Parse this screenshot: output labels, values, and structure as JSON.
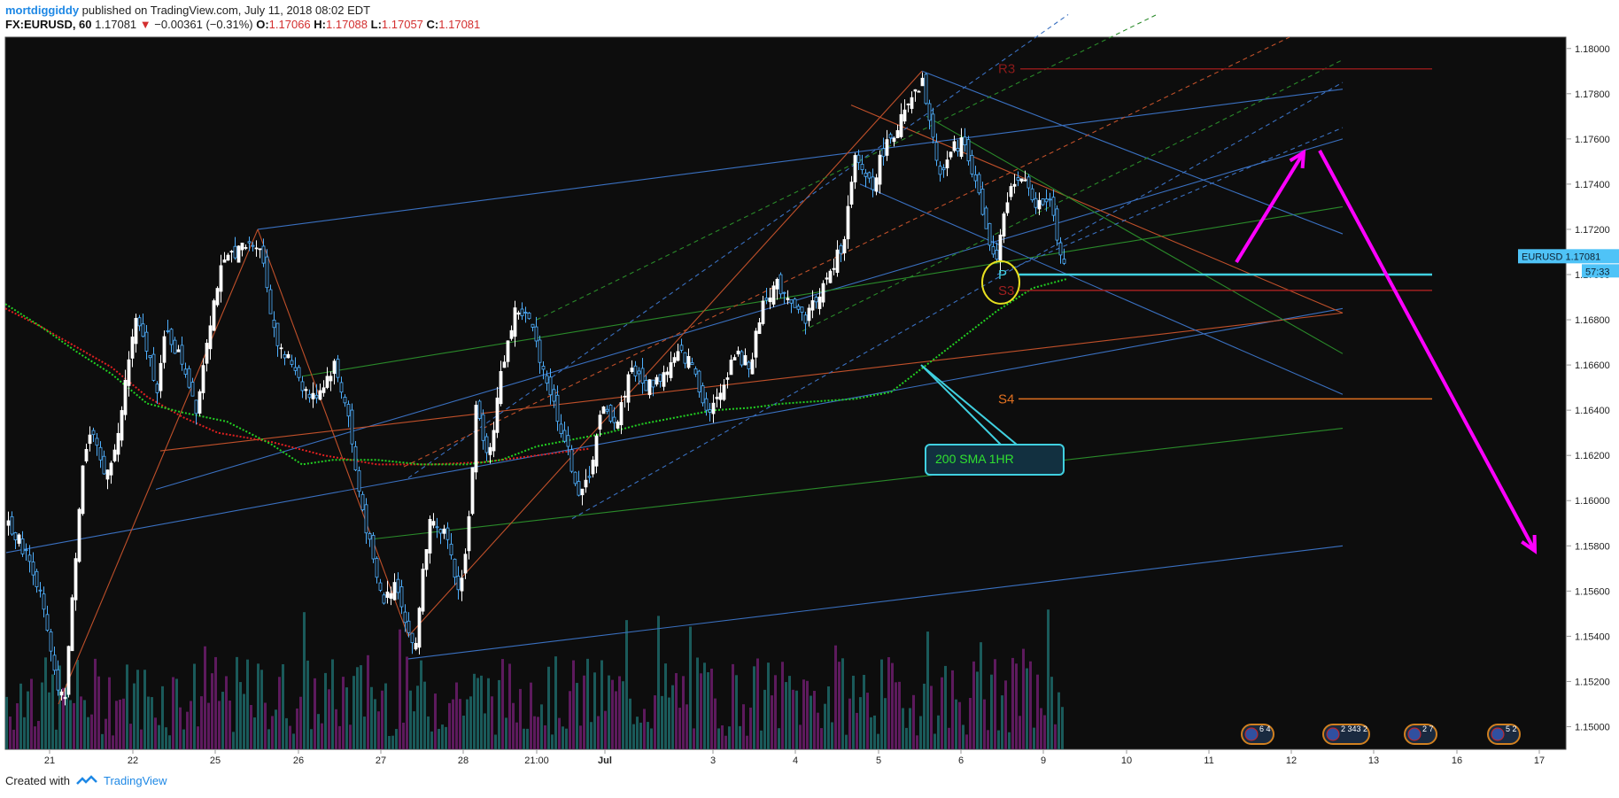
{
  "header": {
    "author": "mortdiggiddy",
    "published": "published on TradingView.com, July 11, 2018 08:02 EDT",
    "symbol": "FX:EURUSD, 60",
    "last": "1.17081",
    "arrow": "▼",
    "change": "−0.00361 (−0.31%)",
    "o_label": "O:",
    "o": "1.17066",
    "h_label": "H:",
    "h": "1.17088",
    "l_label": "L:",
    "l": "1.17057",
    "c_label": "C:",
    "c": "1.17081"
  },
  "footer": {
    "created_with": "Created with",
    "brand": "TradingView"
  },
  "chart_data": {
    "type": "candlestick",
    "symbol": "EURUSD",
    "timeframe": "60",
    "ylim": [
      1.149,
      1.1805
    ],
    "y_ticks": [
      "1.18000",
      "1.17800",
      "1.17600",
      "1.17400",
      "1.17200",
      "1.17000",
      "1.16800",
      "1.16600",
      "1.16400",
      "1.16200",
      "1.16000",
      "1.15800",
      "1.15600",
      "1.15400",
      "1.15200",
      "1.15000"
    ],
    "x_ticks": [
      "21",
      "22",
      "25",
      "26",
      "27",
      "28",
      "21:00",
      "Jul",
      "3",
      "4",
      "5",
      "6",
      "9",
      "10",
      "11",
      "12",
      "13",
      "16",
      "17"
    ],
    "price_label": "EURUSD",
    "price_value": "1.17081",
    "countdown": "57:33",
    "pivots": [
      {
        "name": "R3",
        "value": 1.1791,
        "color": "#8b1a1a"
      },
      {
        "name": "P",
        "value": 1.17,
        "color": "#40d0e0"
      },
      {
        "name": "S3",
        "value": 1.1693,
        "color": "#a02020"
      },
      {
        "name": "S4",
        "value": 1.1645,
        "color": "#e07020"
      }
    ],
    "annotation": "200 SMA 1HR",
    "event_badges": [
      "6 4",
      "2 343 2",
      "2 7",
      "5 2"
    ],
    "price_path": [
      [
        0,
        1.1592
      ],
      [
        10,
        1.1585
      ],
      [
        20,
        1.1578
      ],
      [
        30,
        1.157
      ],
      [
        40,
        1.1555
      ],
      [
        55,
        1.152
      ],
      [
        65,
        1.151
      ],
      [
        75,
        1.156
      ],
      [
        85,
        1.1615
      ],
      [
        95,
        1.163
      ],
      [
        110,
        1.1612
      ],
      [
        125,
        1.1625
      ],
      [
        135,
        1.1655
      ],
      [
        145,
        1.168
      ],
      [
        160,
        1.1665
      ],
      [
        170,
        1.165
      ],
      [
        180,
        1.1675
      ],
      [
        200,
        1.166
      ],
      [
        215,
        1.164
      ],
      [
        225,
        1.167
      ],
      [
        240,
        1.17
      ],
      [
        255,
        1.171
      ],
      [
        270,
        1.1712
      ],
      [
        285,
        1.1715
      ],
      [
        292,
        1.17
      ],
      [
        300,
        1.168
      ],
      [
        310,
        1.1665
      ],
      [
        325,
        1.166
      ],
      [
        335,
        1.165
      ],
      [
        345,
        1.1645
      ],
      [
        355,
        1.165
      ],
      [
        370,
        1.166
      ],
      [
        385,
        1.164
      ],
      [
        395,
        1.161
      ],
      [
        405,
        1.159
      ],
      [
        415,
        1.157
      ],
      [
        425,
        1.1555
      ],
      [
        440,
        1.1565
      ],
      [
        455,
        1.154
      ],
      [
        462,
        1.1535
      ],
      [
        470,
        1.157
      ],
      [
        480,
        1.1595
      ],
      [
        495,
        1.1585
      ],
      [
        510,
        1.156
      ],
      [
        520,
        1.158
      ],
      [
        530,
        1.164
      ],
      [
        545,
        1.162
      ],
      [
        560,
        1.166
      ],
      [
        575,
        1.1685
      ],
      [
        590,
        1.168
      ],
      [
        605,
        1.166
      ],
      [
        620,
        1.164
      ],
      [
        635,
        1.162
      ],
      [
        648,
        1.16
      ],
      [
        660,
        1.1615
      ],
      [
        672,
        1.164
      ],
      [
        690,
        1.1635
      ],
      [
        705,
        1.166
      ],
      [
        720,
        1.165
      ],
      [
        740,
        1.1655
      ],
      [
        760,
        1.1665
      ],
      [
        775,
        1.166
      ],
      [
        790,
        1.164
      ],
      [
        805,
        1.1645
      ],
      [
        820,
        1.1665
      ],
      [
        840,
        1.166
      ],
      [
        855,
        1.169
      ],
      [
        870,
        1.1695
      ],
      [
        885,
        1.169
      ],
      [
        900,
        1.168
      ],
      [
        915,
        1.169
      ],
      [
        930,
        1.17
      ],
      [
        945,
        1.1715
      ],
      [
        958,
        1.175
      ],
      [
        968,
        1.1745
      ],
      [
        978,
        1.174
      ],
      [
        990,
        1.1755
      ],
      [
        1005,
        1.1765
      ],
      [
        1020,
        1.1775
      ],
      [
        1035,
        1.1785
      ],
      [
        1045,
        1.176
      ],
      [
        1055,
        1.1745
      ],
      [
        1068,
        1.1755
      ],
      [
        1080,
        1.176
      ],
      [
        1095,
        1.174
      ],
      [
        1108,
        1.1715
      ],
      [
        1118,
        1.1705
      ],
      [
        1128,
        1.173
      ],
      [
        1140,
        1.1745
      ],
      [
        1152,
        1.1738
      ],
      [
        1165,
        1.173
      ],
      [
        1178,
        1.1735
      ],
      [
        1185,
        1.172
      ],
      [
        1192,
        1.1705
      ],
      [
        1198,
        1.1708
      ]
    ],
    "sma200": [
      [
        0,
        1.1687
      ],
      [
        40,
        1.1677
      ],
      [
        80,
        1.1666
      ],
      [
        120,
        1.1656
      ],
      [
        160,
        1.1643
      ],
      [
        200,
        1.1639
      ],
      [
        250,
        1.1635
      ],
      [
        300,
        1.1625
      ],
      [
        335,
        1.1616
      ],
      [
        370,
        1.1618
      ],
      [
        420,
        1.1618
      ],
      [
        470,
        1.1616
      ],
      [
        520,
        1.1616
      ],
      [
        560,
        1.1618
      ],
      [
        600,
        1.1624
      ],
      [
        640,
        1.1627
      ],
      [
        680,
        1.163
      ],
      [
        720,
        1.1634
      ],
      [
        760,
        1.1637
      ],
      [
        800,
        1.164
      ],
      [
        840,
        1.1641
      ],
      [
        880,
        1.1643
      ],
      [
        920,
        1.1644
      ],
      [
        960,
        1.1645
      ],
      [
        1000,
        1.1648
      ],
      [
        1040,
        1.166
      ],
      [
        1080,
        1.1672
      ],
      [
        1120,
        1.1684
      ],
      [
        1160,
        1.1694
      ],
      [
        1198,
        1.1698
      ]
    ],
    "red_ma": [
      [
        0,
        1.1685
      ],
      [
        40,
        1.1677
      ],
      [
        80,
        1.1668
      ],
      [
        120,
        1.1659
      ],
      [
        160,
        1.1646
      ],
      [
        200,
        1.1637
      ],
      [
        240,
        1.163
      ],
      [
        300,
        1.1626
      ],
      [
        360,
        1.162
      ],
      [
        420,
        1.1616
      ],
      [
        480,
        1.1616
      ],
      [
        540,
        1.1617
      ],
      [
        600,
        1.162
      ],
      [
        660,
        1.1623
      ]
    ]
  }
}
